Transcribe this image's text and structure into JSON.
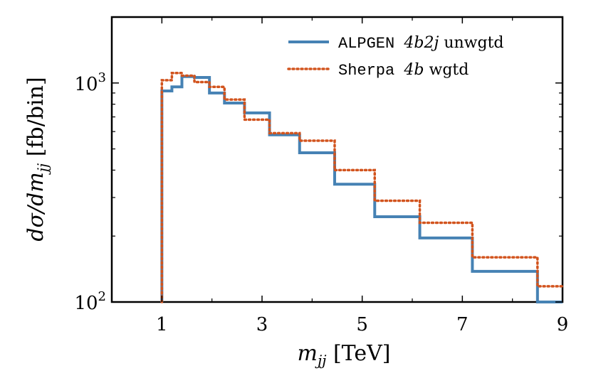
{
  "chart_data": {
    "type": "line",
    "step": true,
    "xlabel": "m_jj [TeV]",
    "ylabel": "dσ/dm_jj [fb/bin]",
    "xlim": [
      0,
      9
    ],
    "ylim": [
      100,
      2000
    ],
    "yscale": "log",
    "xticks": [
      1,
      3,
      5,
      7,
      9
    ],
    "yticks": [
      {
        "value": 100,
        "base": "10",
        "exp": "2"
      },
      {
        "value": 1000,
        "base": "10",
        "exp": "3"
      }
    ],
    "bin_edges": [
      1.0,
      1.2,
      1.4,
      1.65,
      1.95,
      2.25,
      2.65,
      3.15,
      3.75,
      4.45,
      5.25,
      6.15,
      7.2,
      8.5,
      9.0
    ],
    "series": [
      {
        "name": "ALPGEN 4b2j unwgtd",
        "label_parts": {
          "code": "ALPGEN",
          "math": "4b2j",
          "suffix": "unwgtd"
        },
        "color": "#4682b4",
        "style": "solid",
        "values": [
          920,
          960,
          1070,
          1060,
          900,
          810,
          730,
          580,
          480,
          345,
          245,
          196,
          138,
          100
        ]
      },
      {
        "name": "Sherpa 4b wgtd",
        "label_parts": {
          "code": "Sherpa",
          "math": "4b",
          "suffix": "wgtd"
        },
        "color": "#d2541e",
        "style": "dotted",
        "values": [
          1030,
          1110,
          1080,
          1010,
          960,
          840,
          680,
          590,
          545,
          400,
          290,
          230,
          160,
          118
        ]
      }
    ]
  }
}
